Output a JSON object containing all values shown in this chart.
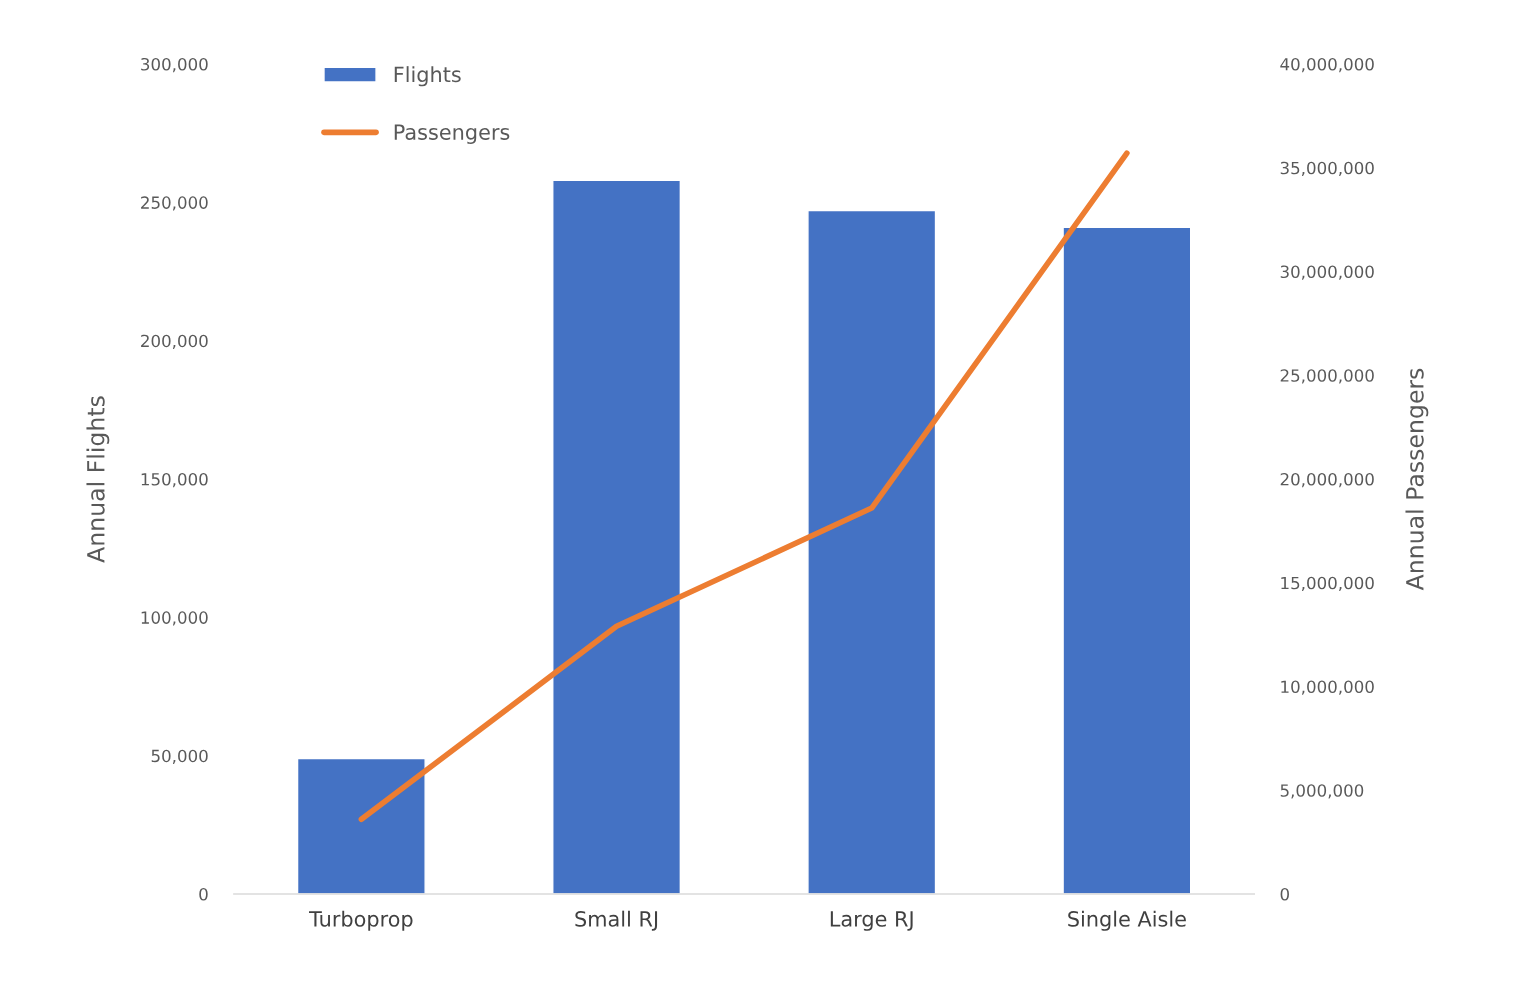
{
  "chart_data": {
    "type": "bar",
    "categories": [
      "Turboprop",
      "Small RJ",
      "Large RJ",
      "Single Aisle"
    ],
    "ylabel": "Annual Flights",
    "y2label": "Annual Passengers",
    "series": [
      {
        "name": "Flights",
        "color": "#4472c4",
        "values": [
          49000,
          258000,
          247000,
          241000
        ]
      },
      {
        "name": "Passengers",
        "type": "line",
        "axis": "y2",
        "color": "#ed7d31",
        "values": [
          3600000,
          12900000,
          18600000,
          35700000
        ]
      }
    ],
    "ylim": [
      0,
      300000
    ],
    "yticks": [
      {
        "value": 0,
        "label": "0"
      },
      {
        "value": 50000,
        "label": "50,000"
      },
      {
        "value": 100000,
        "label": "100,000"
      },
      {
        "value": 150000,
        "label": "150,000"
      },
      {
        "value": 200000,
        "label": "200,000"
      },
      {
        "value": 250000,
        "label": "250,000"
      },
      {
        "value": 300000,
        "label": "300,000"
      }
    ],
    "y2lim": [
      0,
      40000000
    ],
    "y2ticks": [
      {
        "value": 0,
        "label": "0"
      },
      {
        "value": 5000000,
        "label": "5,000,000"
      },
      {
        "value": 10000000,
        "label": "10,000,000"
      },
      {
        "value": 15000000,
        "label": "15,000,000"
      },
      {
        "value": 20000000,
        "label": "20,000,000"
      },
      {
        "value": 25000000,
        "label": "25,000,000"
      },
      {
        "value": 30000000,
        "label": "30,000,000"
      },
      {
        "value": 35000000,
        "label": "35,000,000"
      },
      {
        "value": 40000000,
        "label": "40,000,000"
      }
    ],
    "legend": "top left",
    "grid": false
  }
}
